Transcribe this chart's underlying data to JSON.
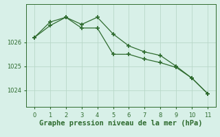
{
  "x": [
    0,
    1,
    2,
    3,
    4,
    5,
    6,
    7,
    8,
    9,
    10,
    11
  ],
  "line1": [
    1026.2,
    1026.85,
    1027.05,
    1026.75,
    1027.05,
    1026.35,
    1025.85,
    1025.6,
    1025.45,
    1025.0,
    1024.5,
    1023.85
  ],
  "line2": [
    1026.2,
    1026.7,
    1027.05,
    1026.6,
    1026.6,
    1025.5,
    1025.5,
    1025.3,
    1025.15,
    1024.95,
    1024.5,
    1023.85
  ],
  "line_color": "#2d6a2d",
  "bg_color": "#d8f0e8",
  "grid_color": "#b8d8c8",
  "xlabel": "Graphe pression niveau de la mer (hPa)",
  "xlabel_fontsize": 7.5,
  "yticks": [
    1024,
    1025,
    1026
  ],
  "ylim": [
    1023.3,
    1027.6
  ],
  "xlim": [
    -0.5,
    11.5
  ]
}
